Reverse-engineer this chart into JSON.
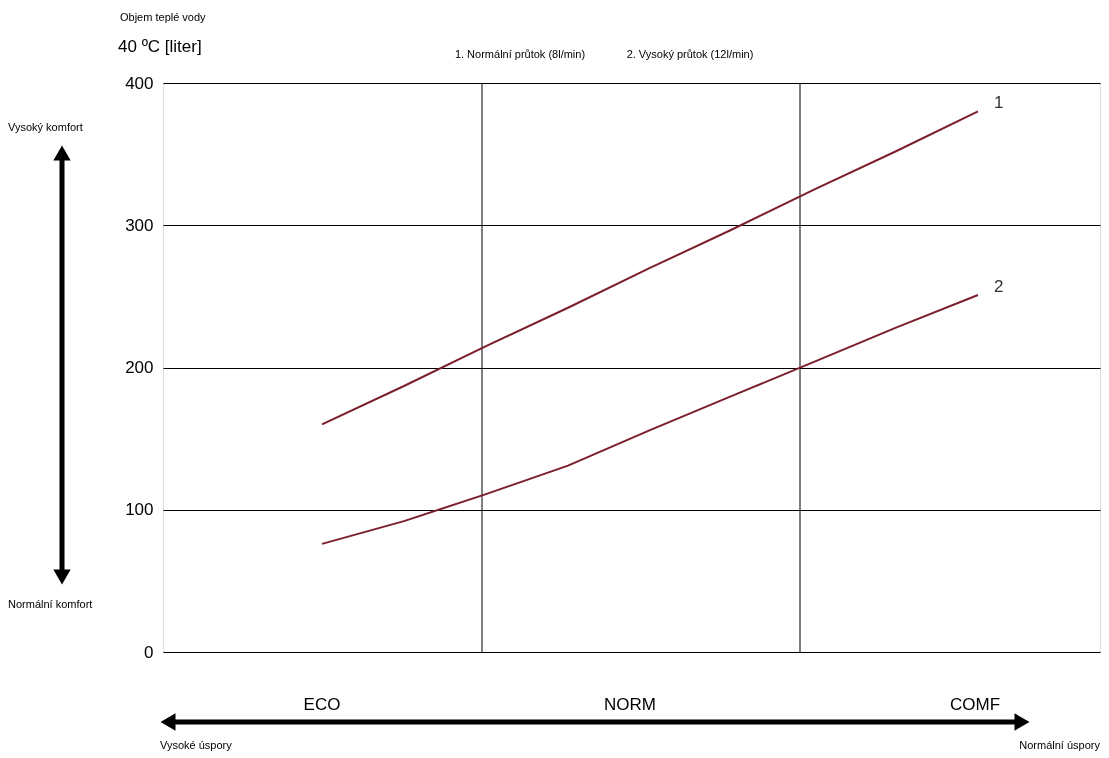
{
  "chart_data": {
    "type": "line",
    "title": "Objem teplé vody",
    "ylabel": "40 ºC [liter]",
    "categories": [
      null,
      null,
      null,
      null,
      null,
      null,
      null,
      null,
      null
    ],
    "ylim": [
      0,
      400
    ],
    "yticks": [
      0,
      100,
      200,
      300,
      400
    ],
    "grid": true,
    "marker": "none",
    "line_style": "solid",
    "series": [
      {
        "name": "1",
        "color": "#7b1f2b",
        "values": [
          160,
          187,
          215,
          242,
          270,
          297,
          325,
          352,
          380
        ]
      },
      {
        "name": "2",
        "color": "#7b1f2b",
        "values": [
          76,
          92,
          111,
          131,
          156,
          180,
          204,
          228,
          251
        ]
      }
    ],
    "annotations": [
      "1. Normální průtok (8l/min)",
      "2. Vysoký průtok (12l/min)",
      "Vysoký komfort",
      "Normální komfort",
      "ECO",
      "NORM",
      "COMF",
      "Vysoké úspory",
      "Normální úspory"
    ]
  }
}
